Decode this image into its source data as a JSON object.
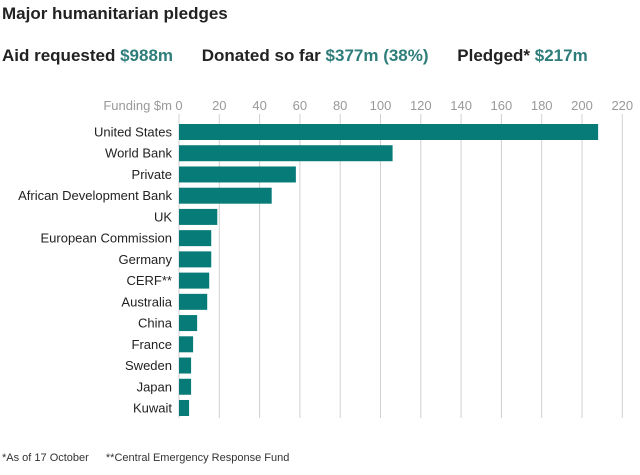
{
  "title": "Major humanitarian pledges",
  "stats": [
    {
      "label": "Aid requested",
      "value": "$988m"
    },
    {
      "label": "Donated so far",
      "value": "$377m (38%)"
    },
    {
      "label": "Pledged*",
      "value": "$217m"
    }
  ],
  "footnotes": [
    "*As of 17 October",
    "**Central Emergency Response Fund"
  ],
  "colors": {
    "bar": "#077b78",
    "grid": "#d0d0d0",
    "tick": "#999999"
  },
  "chart_data": {
    "type": "bar",
    "orientation": "horizontal",
    "xlabel": "Funding $m",
    "xlim": [
      0,
      220
    ],
    "ticks": [
      0,
      20,
      40,
      60,
      80,
      100,
      120,
      140,
      160,
      180,
      200,
      220
    ],
    "grid": true,
    "categories": [
      "United States",
      "World Bank",
      "Private",
      "African Development Bank",
      "UK",
      "European Commission",
      "Germany",
      "CERF**",
      "Australia",
      "China",
      "France",
      "Sweden",
      "Japan",
      "Kuwait"
    ],
    "values": [
      208,
      106,
      58,
      46,
      19,
      16,
      16,
      15,
      14,
      9,
      7,
      6,
      6,
      5
    ]
  }
}
